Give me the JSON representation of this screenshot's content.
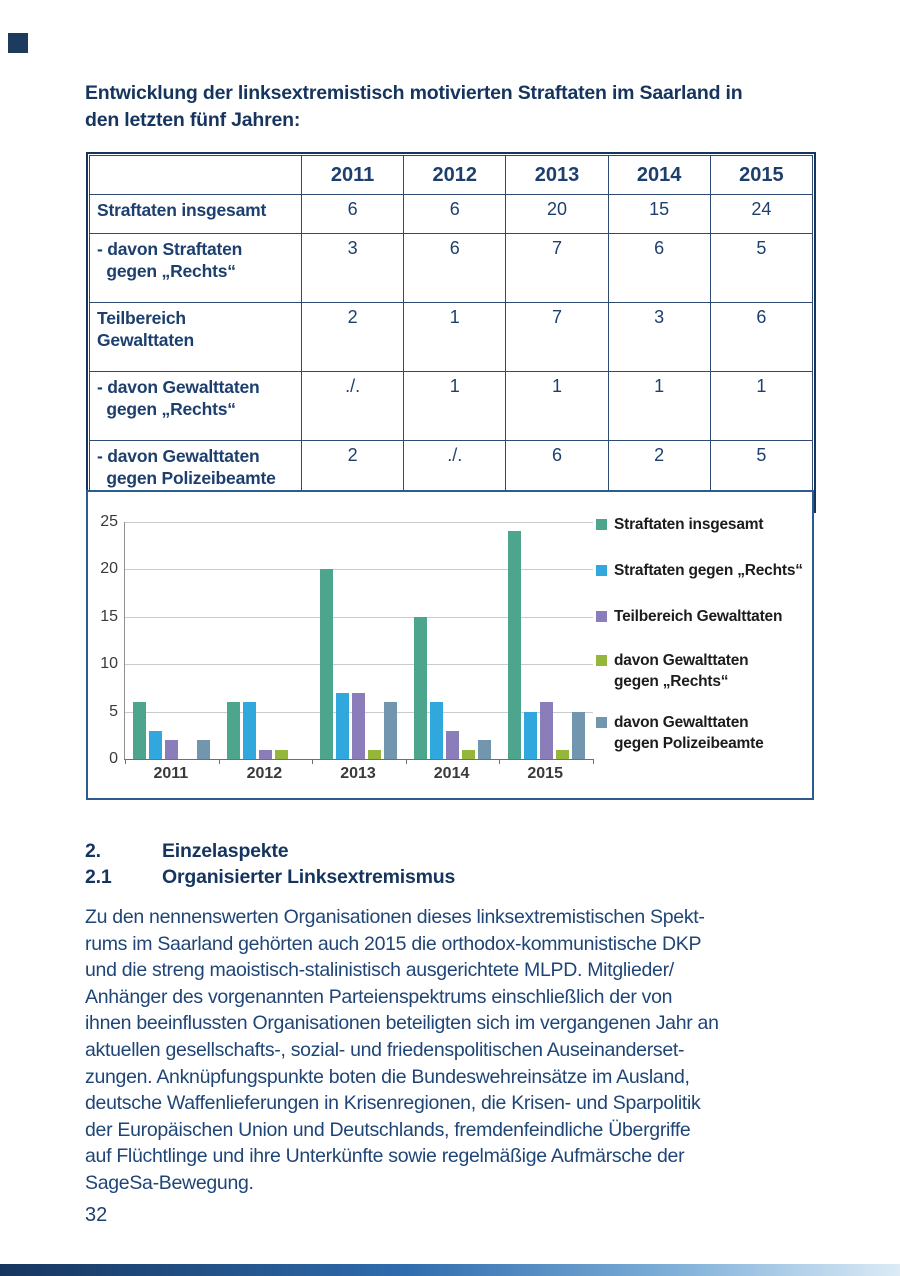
{
  "page": {
    "heading_lines": [
      "Entwicklung der linksextremistisch motivierten Straftaten im Saarland in",
      "den letzten fünf Jahren:"
    ],
    "page_number": "32"
  },
  "table": {
    "col_headers": [
      "2011",
      "2012",
      "2013",
      "2014",
      "2015"
    ],
    "rows": [
      {
        "label": "Straftaten insgesamt",
        "values": [
          "6",
          "6",
          "20",
          "15",
          "24"
        ]
      },
      {
        "label": "- davon Straftaten\n  gegen „Rechts“",
        "values": [
          "3",
          "6",
          "7",
          "6",
          "5"
        ]
      },
      {
        "label": "Teilbereich\nGewalttaten",
        "values": [
          "2",
          "1",
          "7",
          "3",
          "6"
        ]
      },
      {
        "label": "- davon Gewalttaten\n  gegen „Rechts“",
        "values": [
          "./.",
          "1",
          "1",
          "1",
          "1"
        ]
      },
      {
        "label": "- davon Gewalttaten\n  gegen Polizeibeamte",
        "values": [
          "2",
          "./.",
          "6",
          "2",
          "5"
        ]
      }
    ]
  },
  "chart_data": {
    "type": "bar",
    "title": "",
    "xlabel": "",
    "ylabel": "",
    "categories": [
      "2011",
      "2012",
      "2013",
      "2014",
      "2015"
    ],
    "series": [
      {
        "name": "Straftaten insgesamt",
        "color": "#4DA58D",
        "values": [
          6,
          6,
          20,
          15,
          24
        ]
      },
      {
        "name": "Straftaten gegen „Rechts“",
        "color": "#30A7DD",
        "values": [
          3,
          6,
          7,
          6,
          5
        ]
      },
      {
        "name": "Teilbereich Gewalttaten",
        "color": "#8B7CBA",
        "values": [
          2,
          1,
          7,
          3,
          6
        ]
      },
      {
        "name": "davon Gewalttaten gegen „Rechts“",
        "color": "#94B63B",
        "values": [
          0,
          1,
          1,
          1,
          1
        ]
      },
      {
        "name": "davon Gewalttaten gegen Polizeibeamte",
        "color": "#7296AD",
        "values": [
          2,
          0,
          6,
          2,
          5
        ]
      }
    ],
    "legend_labels": [
      "Straftaten insgesamt",
      "Straftaten gegen „Rechts“",
      "Teilbereich Gewalttaten",
      "davon Gewalttaten\ngegen „Rechts“",
      "davon Gewalttaten\ngegen Polizeibeamte"
    ],
    "y_ticks": [
      0,
      5,
      10,
      15,
      20,
      25
    ],
    "ylim": [
      0,
      25
    ],
    "grid": true,
    "legend_position": "right"
  },
  "sections": [
    {
      "number": "2.",
      "title": "Einzelaspekte"
    },
    {
      "number": "2.1",
      "title": "Organisierter Linksextremismus"
    }
  ],
  "paragraph": {
    "lines": [
      "Zu den nennenswerten Organisationen dieses linksextremistischen Spekt-",
      "rums im Saarland gehörten auch 2015 die orthodox-kommunistische DKP",
      "und die streng maoistisch-stalinistisch ausgerichtete MLPD. Mitglieder/",
      "Anhänger des vorgenannten Parteienspektrums einschließlich der von",
      "ihnen beeinflussten Organisationen beteiligten sich im vergangenen Jahr an",
      "aktuellen gesellschafts-, sozial- und friedenspolitischen Auseinanderset-",
      "zungen. Anknüpfungspunkte boten die Bundeswehreinsätze im Ausland,",
      "deutsche Waffenlieferungen in Krisenregionen, die Krisen- und Sparpolitik",
      "der Europäischen Union und Deutschlands, fremdenfeindliche Übergriffe",
      "auf Flüchtlinge und ihre Unterkünfte sowie regelmäßige Aufmärsche der",
      "SageSa-Bewegung."
    ]
  }
}
